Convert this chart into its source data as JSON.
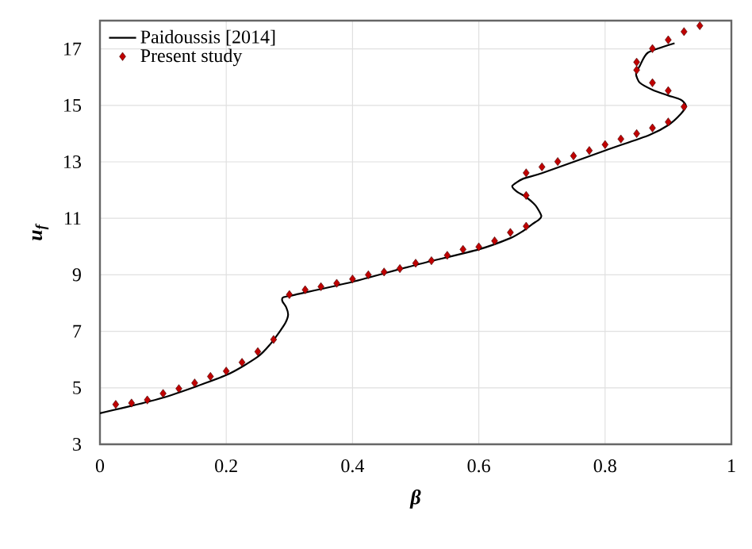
{
  "chart_data": {
    "type": "line",
    "xlabel": "β",
    "ylabel": "u$_{f}$",
    "xlim": [
      0,
      1
    ],
    "ylim": [
      3,
      18
    ],
    "xticks": [
      0,
      0.2,
      0.4,
      0.6,
      0.8,
      1
    ],
    "yticks": [
      3,
      5,
      7,
      9,
      11,
      13,
      15,
      17
    ],
    "grid": true,
    "legend": "top left",
    "series": [
      {
        "name": "Paidoussis [2014]",
        "color": "#000000",
        "marker": "none",
        "line_style": "solid",
        "x": [
          0,
          0.1,
          0.2,
          0.25,
          0.27,
          0.285,
          0.294,
          0.298,
          0.295,
          0.289,
          0.29,
          0.31,
          0.4,
          0.5,
          0.6,
          0.65,
          0.67,
          0.685,
          0.695,
          0.699,
          0.69,
          0.675,
          0.66,
          0.653,
          0.67,
          0.7,
          0.8,
          0.87,
          0.9,
          0.92,
          0.928,
          0.92,
          0.9,
          0.875,
          0.855,
          0.849,
          0.855,
          0.868,
          0.91
        ],
        "values": [
          4.1,
          4.65,
          5.45,
          6.1,
          6.55,
          7.0,
          7.31,
          7.59,
          7.85,
          8.06,
          8.2,
          8.3,
          8.75,
          9.35,
          9.9,
          10.3,
          10.55,
          10.8,
          10.95,
          11.09,
          11.45,
          11.75,
          11.95,
          12.15,
          12.4,
          12.6,
          13.4,
          13.95,
          14.3,
          14.7,
          14.99,
          15.2,
          15.35,
          15.55,
          15.8,
          16.11,
          16.4,
          16.87,
          17.2
        ]
      },
      {
        "name": "Present study",
        "type": "scatter",
        "color": "#c00000",
        "marker": "diamond",
        "x": [
          0.025,
          0.05,
          0.075,
          0.1,
          0.125,
          0.15,
          0.175,
          0.2,
          0.225,
          0.25,
          0.275,
          0.3,
          0.325,
          0.35,
          0.375,
          0.4,
          0.425,
          0.45,
          0.475,
          0.5,
          0.525,
          0.55,
          0.575,
          0.6,
          0.625,
          0.65,
          0.675,
          0.675,
          0.675,
          0.7,
          0.725,
          0.75,
          0.775,
          0.8,
          0.825,
          0.85,
          0.875,
          0.9,
          0.925,
          0.9,
          0.875,
          0.85,
          0.85,
          0.875,
          0.9,
          0.925,
          0.95
        ],
        "values": [
          4.41,
          4.46,
          4.57,
          4.8,
          4.97,
          5.17,
          5.4,
          5.59,
          5.9,
          6.28,
          6.71,
          8.3,
          8.47,
          8.58,
          8.7,
          8.85,
          9.0,
          9.1,
          9.22,
          9.41,
          9.5,
          9.69,
          9.9,
          9.99,
          10.2,
          10.5,
          10.72,
          11.81,
          12.61,
          12.82,
          13.01,
          13.21,
          13.4,
          13.61,
          13.81,
          14.0,
          14.2,
          14.41,
          14.95,
          15.52,
          15.8,
          16.25,
          16.53,
          17.01,
          17.32,
          17.61,
          17.82
        ]
      }
    ]
  }
}
